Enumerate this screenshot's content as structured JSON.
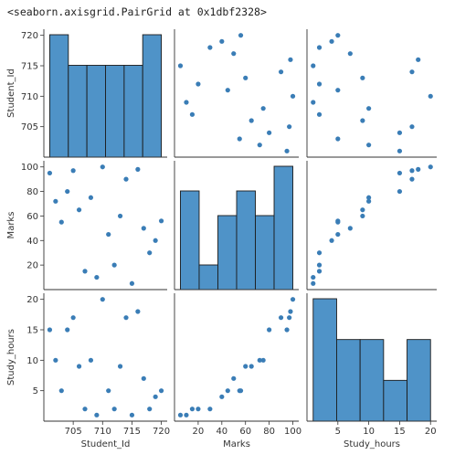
{
  "repr_text": "<seaborn.axisgrid.PairGrid at 0x1dbf2328>",
  "colors": {
    "accent": "#3a7db6",
    "bar_fill": "#4f93c8",
    "bar_edge": "#1b1b1b",
    "axis": "#333333"
  },
  "variables": [
    "Student_Id",
    "Marks",
    "Study_hours"
  ],
  "chart_data": {
    "type": "scatter",
    "title": "",
    "kind": "pairplot",
    "points": {
      "Student_Id": [
        701,
        702,
        703,
        704,
        705,
        706,
        707,
        708,
        709,
        710,
        711,
        712,
        713,
        714,
        715,
        716,
        717,
        718,
        719,
        720
      ],
      "Marks": [
        95,
        72,
        55,
        80,
        97,
        65,
        15,
        75,
        10,
        100,
        45,
        20,
        60,
        90,
        5,
        98,
        50,
        30,
        40,
        56
      ],
      "Study_hours": [
        15,
        10,
        5,
        15,
        17,
        9,
        2,
        10,
        1,
        20,
        5,
        2,
        9,
        17,
        1,
        18,
        7,
        2,
        4,
        5
      ]
    },
    "axes": {
      "Student_Id": {
        "lim": [
          700,
          721
        ],
        "ticks": [
          705,
          710,
          715,
          720
        ]
      },
      "Marks": {
        "lim": [
          0,
          105
        ],
        "ticks": [
          20,
          40,
          60,
          80,
          100
        ]
      },
      "Study_hours": {
        "lim": [
          0,
          21
        ],
        "ticks": [
          5,
          10,
          15,
          20
        ]
      }
    },
    "diagonal": {
      "Student_Id": {
        "type": "histogram",
        "bin_edges": [
          701,
          704.17,
          707.33,
          710.5,
          713.67,
          716.83,
          720
        ],
        "counts": [
          4,
          3,
          3,
          3,
          3,
          4
        ]
      },
      "Marks": {
        "type": "histogram",
        "bin_edges": [
          5,
          20.83,
          36.67,
          52.5,
          68.33,
          84.17,
          100
        ],
        "counts": [
          4,
          1,
          3,
          4,
          3,
          5
        ]
      },
      "Study_hours": {
        "type": "histogram",
        "bin_edges": [
          1,
          4.8,
          8.6,
          12.4,
          16.2,
          20
        ],
        "counts": [
          6,
          4,
          4,
          2,
          4
        ]
      }
    },
    "grid": false,
    "legend": "none"
  }
}
